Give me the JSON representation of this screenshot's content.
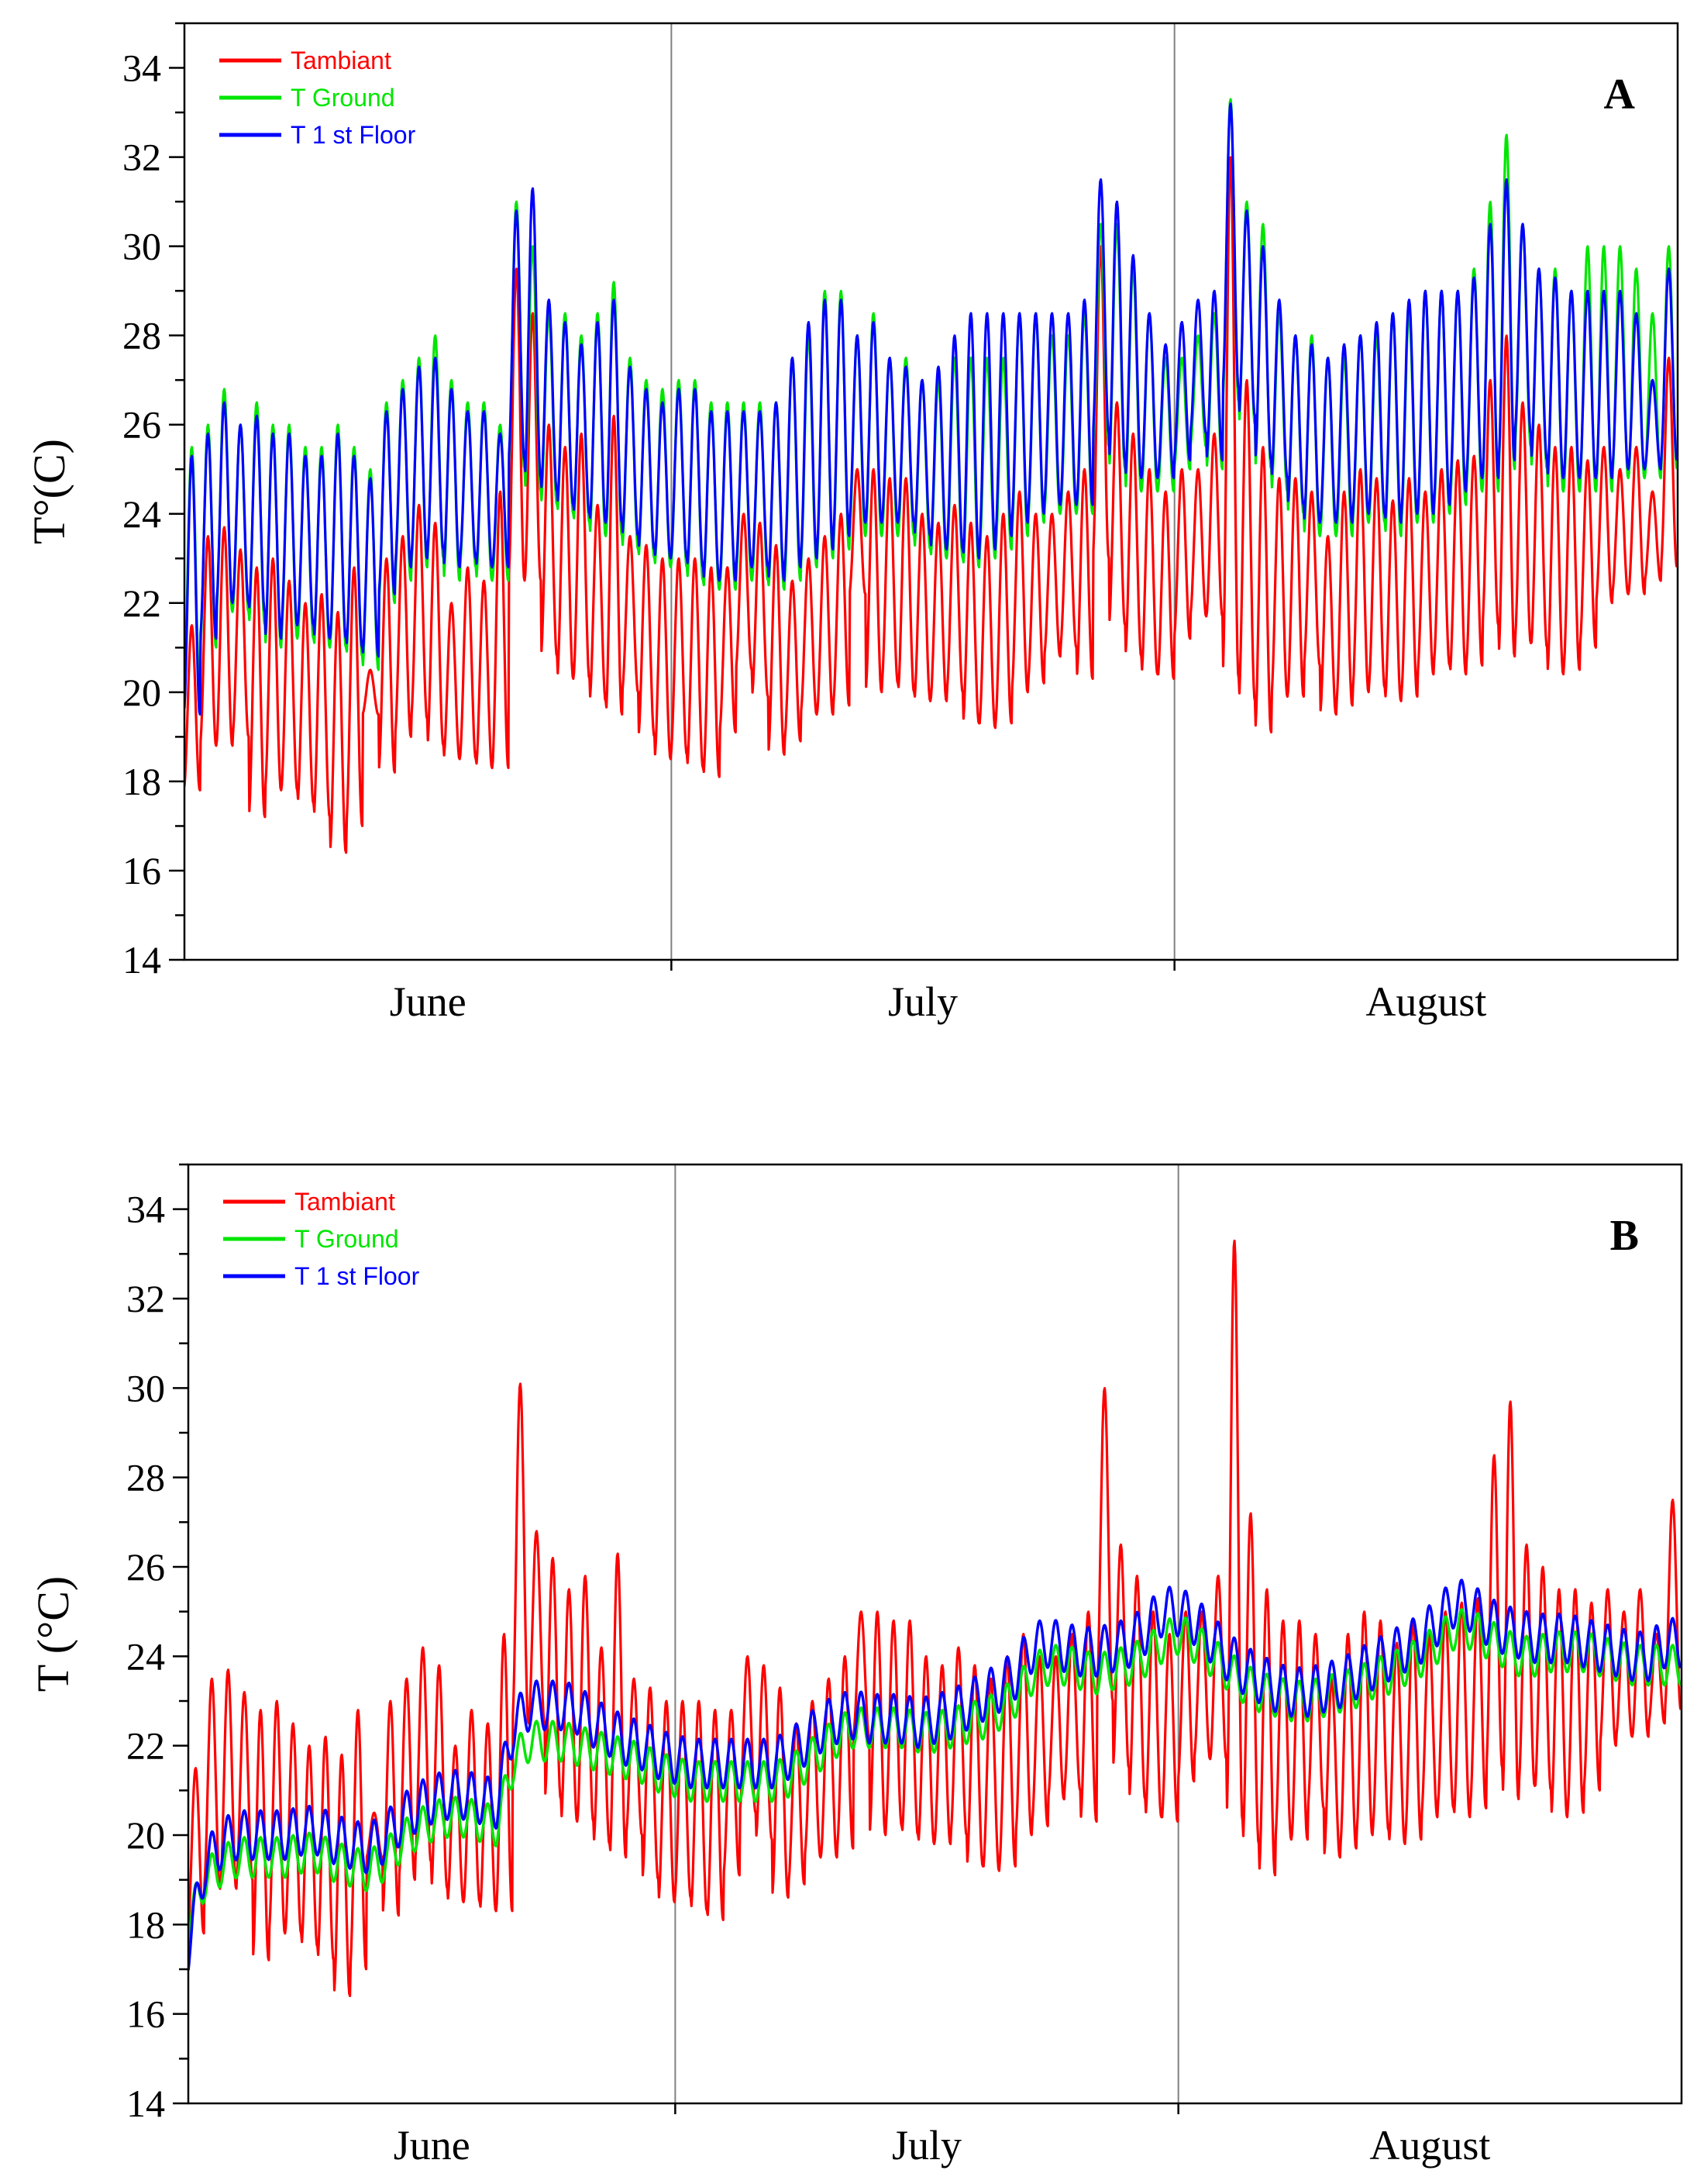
{
  "chart_data": [
    {
      "type": "line",
      "panel": "A",
      "ylabel": "T°(C)",
      "xlabel": "",
      "ylim": [
        14,
        35
      ],
      "yticks": [
        "14",
        "16",
        "18",
        "20",
        "22",
        "24",
        "26",
        "28",
        "30",
        "32",
        "34"
      ],
      "x_unit": "day of summer period (0 = 1 June)",
      "xlim": [
        0,
        92
      ],
      "months": [
        {
          "label": "June",
          "center": 15
        },
        {
          "label": "July",
          "center": 45.5
        },
        {
          "label": "August",
          "center": 76.5
        }
      ],
      "month_dividers": [
        30,
        61
      ],
      "legend": [
        "Tambiant",
        "T Ground",
        "T 1 st Floor"
      ],
      "colors": {
        "Tambiant": "#ff0000",
        "T Ground": "#00e600",
        "T 1 st Floor": "#0000ff"
      },
      "series": [
        {
          "name": "Tambiant",
          "color": "#ff0000",
          "daily_min": [
            17.8,
            18.8,
            18.8,
            19.0,
            17.2,
            17.8,
            17.8,
            17.5,
            17.2,
            16.4,
            17.0,
            19.5,
            18.2,
            19.0,
            19.4,
            18.8,
            18.5,
            18.5,
            18.3,
            18.3,
            22.5,
            22.5,
            20.8,
            20.3,
            20.3,
            19.8,
            19.5,
            20.0,
            19.0,
            18.5,
            18.6,
            18.3,
            18.1,
            19.1,
            20.5,
            19.9,
            18.6,
            18.9,
            19.5,
            19.5,
            19.7,
            22.2,
            20.0,
            20.2,
            20.0,
            19.8,
            19.8,
            20.0,
            19.3,
            19.2,
            19.3,
            20.0,
            20.2,
            20.8,
            21.0,
            20.3,
            23.0,
            21.5,
            20.8,
            20.4,
            20.3,
            21.2,
            21.7,
            21.7,
            20.3,
            19.8,
            19.1,
            19.9,
            19.9,
            20.6,
            19.5,
            19.7,
            20.0,
            20.1,
            19.8,
            19.9,
            20.4,
            20.6,
            20.4,
            20.6,
            21.5,
            20.8,
            21.1,
            21.0,
            20.4,
            20.5,
            21.0,
            22.0,
            22.2,
            22.2,
            22.5,
            22.8
          ],
          "daily_max": [
            21.5,
            23.5,
            23.7,
            23.2,
            22.8,
            23.0,
            22.5,
            22.0,
            22.2,
            21.8,
            22.8,
            20.5,
            23.0,
            23.5,
            24.2,
            23.8,
            22.0,
            22.8,
            22.5,
            24.5,
            29.5,
            28.5,
            26.0,
            25.5,
            25.8,
            24.2,
            26.2,
            23.5,
            23.3,
            23.0,
            23.0,
            23.0,
            22.8,
            22.8,
            24.0,
            23.8,
            23.3,
            22.5,
            23.0,
            23.5,
            24.0,
            25.0,
            25.0,
            24.8,
            24.8,
            24.0,
            23.8,
            24.2,
            23.8,
            23.5,
            24.0,
            24.5,
            24.0,
            24.0,
            24.5,
            25.0,
            30.0,
            26.5,
            25.8,
            25.0,
            24.5,
            25.0,
            25.0,
            25.8,
            32.0,
            27.0,
            25.5,
            24.8,
            24.8,
            24.5,
            23.5,
            24.5,
            25.0,
            24.8,
            24.3,
            24.8,
            24.5,
            25.0,
            25.2,
            25.3,
            27.0,
            28.0,
            26.5,
            26.0,
            25.5,
            25.5,
            25.2,
            25.5,
            25.0,
            25.5,
            24.5,
            27.5
          ]
        },
        {
          "name": "T Ground",
          "color": "#00e600",
          "daily_min": [
            20.0,
            21.0,
            21.8,
            21.8,
            21.5,
            21.0,
            21.2,
            21.2,
            21.0,
            21.0,
            20.8,
            20.5,
            22.0,
            22.5,
            22.8,
            23.0,
            22.5,
            22.8,
            22.5,
            22.5,
            25.0,
            24.5,
            24.2,
            24.0,
            23.8,
            23.5,
            23.5,
            23.2,
            23.0,
            22.8,
            22.8,
            22.5,
            22.3,
            22.3,
            22.5,
            22.5,
            22.3,
            22.5,
            22.8,
            23.0,
            23.2,
            23.5,
            23.5,
            23.5,
            23.5,
            23.2,
            23.0,
            23.0,
            22.8,
            23.0,
            23.2,
            23.5,
            23.8,
            24.0,
            24.0,
            24.0,
            25.5,
            25.0,
            24.5,
            24.5,
            24.5,
            25.0,
            25.5,
            25.0,
            26.5,
            26.0,
            25.0,
            24.5,
            24.0,
            23.5,
            23.5,
            23.5,
            23.8,
            23.8,
            23.5,
            23.8,
            23.8,
            24.0,
            24.2,
            24.5,
            24.5,
            25.0,
            25.5,
            25.0,
            24.5,
            24.5,
            24.5,
            24.5,
            24.8,
            24.8,
            24.8,
            25.0
          ],
          "daily_max": [
            25.5,
            26.0,
            26.8,
            26.0,
            26.5,
            26.0,
            26.0,
            25.5,
            25.5,
            26.0,
            25.5,
            25.0,
            26.5,
            27.0,
            27.5,
            28.0,
            27.0,
            26.5,
            26.5,
            26.0,
            31.0,
            30.0,
            28.5,
            28.5,
            28.0,
            28.5,
            29.2,
            27.5,
            27.0,
            26.8,
            27.0,
            27.0,
            26.5,
            26.5,
            26.5,
            26.5,
            26.5,
            27.5,
            28.0,
            29.0,
            29.0,
            28.0,
            28.5,
            27.5,
            27.5,
            27.0,
            27.0,
            27.5,
            27.5,
            27.5,
            27.5,
            28.5,
            28.5,
            28.0,
            28.0,
            28.5,
            30.5,
            30.5,
            29.5,
            28.5,
            27.5,
            27.5,
            28.0,
            28.5,
            33.3,
            31.0,
            30.5,
            28.5,
            28.0,
            28.0,
            27.5,
            27.5,
            28.0,
            28.0,
            28.5,
            28.5,
            29.0,
            29.0,
            29.0,
            29.5,
            31.0,
            32.5,
            30.5,
            29.5,
            29.5,
            29.0,
            30.0,
            30.0,
            30.0,
            29.5,
            28.5,
            30.0
          ]
        },
        {
          "name": "T 1 st Floor",
          "color": "#0000ff",
          "daily_min": [
            19.5,
            21.2,
            22.0,
            22.0,
            21.8,
            21.2,
            21.5,
            21.5,
            21.2,
            21.2,
            21.0,
            20.8,
            22.2,
            22.8,
            23.0,
            23.2,
            22.8,
            23.0,
            22.8,
            22.8,
            25.2,
            24.8,
            24.5,
            24.2,
            24.0,
            23.8,
            23.8,
            23.5,
            23.2,
            23.0,
            23.0,
            22.8,
            22.5,
            22.5,
            22.8,
            22.8,
            22.5,
            22.8,
            23.0,
            23.2,
            23.5,
            23.8,
            23.8,
            23.8,
            23.8,
            23.5,
            23.2,
            23.2,
            23.0,
            23.2,
            23.5,
            23.8,
            24.0,
            24.2,
            24.2,
            24.2,
            25.8,
            25.2,
            24.8,
            24.8,
            24.8,
            25.2,
            25.8,
            25.2,
            26.8,
            26.2,
            25.2,
            24.8,
            24.2,
            23.8,
            23.8,
            23.8,
            24.0,
            24.0,
            23.8,
            24.0,
            24.0,
            24.2,
            24.5,
            24.8,
            24.8,
            25.2,
            25.8,
            25.2,
            24.8,
            24.8,
            24.8,
            24.8,
            25.0,
            25.0,
            25.0,
            25.2
          ],
          "daily_max": [
            25.3,
            25.8,
            26.5,
            26.0,
            26.2,
            25.8,
            25.8,
            25.3,
            25.3,
            25.8,
            25.3,
            24.8,
            26.3,
            26.8,
            27.3,
            27.5,
            26.8,
            26.3,
            26.3,
            25.8,
            30.8,
            31.3,
            28.8,
            28.3,
            27.8,
            28.3,
            28.8,
            27.3,
            26.8,
            26.5,
            26.8,
            26.8,
            26.3,
            26.3,
            26.3,
            26.3,
            26.5,
            27.5,
            28.3,
            28.8,
            28.8,
            28.0,
            28.3,
            27.5,
            27.3,
            27.0,
            27.3,
            28.0,
            28.5,
            28.5,
            28.5,
            28.5,
            28.5,
            28.5,
            28.5,
            28.8,
            31.5,
            31.0,
            29.8,
            28.5,
            27.8,
            28.3,
            28.8,
            29.0,
            33.2,
            30.8,
            30.0,
            28.8,
            28.0,
            27.8,
            27.5,
            27.8,
            28.0,
            28.3,
            28.5,
            28.8,
            29.0,
            29.0,
            29.0,
            29.3,
            30.5,
            31.5,
            30.5,
            29.5,
            29.3,
            29.0,
            29.0,
            29.0,
            29.0,
            28.5,
            27.0,
            29.5
          ]
        }
      ]
    },
    {
      "type": "line",
      "panel": "B",
      "ylabel": "T (°C)",
      "xlabel": "",
      "ylim": [
        14,
        35
      ],
      "yticks": [
        "14",
        "16",
        "18",
        "20",
        "22",
        "24",
        "26",
        "28",
        "30",
        "32",
        "34"
      ],
      "x_unit": "day of summer period (0 = 1 June)",
      "xlim": [
        0,
        92
      ],
      "months": [
        {
          "label": "June",
          "center": 15
        },
        {
          "label": "July",
          "center": 45.5
        },
        {
          "label": "August",
          "center": 76.5
        }
      ],
      "month_dividers": [
        30,
        61
      ],
      "legend": [
        "Tambiant",
        "T Ground",
        "T 1 st Floor"
      ],
      "colors": {
        "Tambiant": "#ff0000",
        "T Ground": "#00e600",
        "T 1 st Floor": "#0000ff"
      },
      "series": [
        {
          "name": "Tambiant",
          "color": "#ff0000",
          "daily_min": [
            17.8,
            18.8,
            18.8,
            19.0,
            17.2,
            17.8,
            17.8,
            17.5,
            17.2,
            16.4,
            17.0,
            19.5,
            18.2,
            19.0,
            19.4,
            18.8,
            18.5,
            18.5,
            18.3,
            18.3,
            22.5,
            22.5,
            20.8,
            20.3,
            20.3,
            19.8,
            19.5,
            20.0,
            19.0,
            18.5,
            18.6,
            18.3,
            18.1,
            19.1,
            20.5,
            19.9,
            18.6,
            18.9,
            19.5,
            19.5,
            19.7,
            22.2,
            20.0,
            20.2,
            20.0,
            19.8,
            19.8,
            20.0,
            19.3,
            19.2,
            19.3,
            20.0,
            20.2,
            20.8,
            21.0,
            20.3,
            23.0,
            21.5,
            20.8,
            20.4,
            20.3,
            21.2,
            21.7,
            21.7,
            20.3,
            19.8,
            19.1,
            19.9,
            19.9,
            20.6,
            19.5,
            19.7,
            20.0,
            20.1,
            19.8,
            19.9,
            20.4,
            20.6,
            20.4,
            20.6,
            21.5,
            20.8,
            21.1,
            21.0,
            20.4,
            20.5,
            21.0,
            22.0,
            22.2,
            22.2,
            22.5,
            22.8
          ],
          "daily_max": [
            21.5,
            23.5,
            23.7,
            23.2,
            22.8,
            23.0,
            22.5,
            22.0,
            22.2,
            21.8,
            22.8,
            20.5,
            23.0,
            23.5,
            24.2,
            23.8,
            22.0,
            22.8,
            22.5,
            24.5,
            30.1,
            26.8,
            26.2,
            25.5,
            25.8,
            24.2,
            26.3,
            23.5,
            23.3,
            23.0,
            23.0,
            23.0,
            22.8,
            22.8,
            24.0,
            23.8,
            23.3,
            22.5,
            23.0,
            23.5,
            24.0,
            25.0,
            25.0,
            24.8,
            24.8,
            24.0,
            23.8,
            24.2,
            23.8,
            23.5,
            24.0,
            24.5,
            24.0,
            24.0,
            24.5,
            25.0,
            30.0,
            26.5,
            25.8,
            25.0,
            24.5,
            25.0,
            25.0,
            25.8,
            33.3,
            27.2,
            25.5,
            24.8,
            24.8,
            24.5,
            23.5,
            24.5,
            25.0,
            24.8,
            24.3,
            24.8,
            24.5,
            25.0,
            25.2,
            25.3,
            28.5,
            29.7,
            26.5,
            26.0,
            25.5,
            25.5,
            25.2,
            25.5,
            25.0,
            25.5,
            24.5,
            27.5
          ]
        },
        {
          "name": "T Ground",
          "color": "#00e600",
          "daily_mean": [
            18.0,
            19.0,
            19.3,
            19.5,
            19.5,
            19.5,
            19.5,
            19.6,
            19.6,
            19.4,
            19.3,
            19.2,
            19.4,
            19.8,
            20.1,
            20.3,
            20.4,
            20.4,
            20.3,
            20.2,
            21.6,
            22.1,
            22.1,
            22.1,
            22.0,
            21.9,
            21.8,
            21.7,
            21.6,
            21.4,
            21.3,
            21.2,
            21.2,
            21.2,
            21.2,
            21.2,
            21.2,
            21.3,
            21.6,
            21.9,
            22.2,
            22.4,
            22.4,
            22.4,
            22.4,
            22.3,
            22.3,
            22.4,
            22.5,
            22.6,
            22.8,
            23.1,
            23.6,
            23.8,
            23.8,
            23.7,
            23.6,
            23.7,
            23.8,
            24.0,
            24.3,
            24.5,
            24.3,
            24.0,
            23.7,
            23.4,
            23.2,
            23.1,
            23.0,
            23.0,
            23.1,
            23.2,
            23.3,
            23.5,
            23.6,
            23.8,
            24.0,
            24.3,
            24.6,
            24.6,
            24.4,
            24.2,
            24.0,
            24.0,
            24.1,
            24.1,
            24.1,
            24.0,
            23.9,
            23.8,
            23.8,
            23.8
          ],
          "daily_amplitude": 0.9
        },
        {
          "name": "T 1 st Floor",
          "color": "#0000ff",
          "daily_mean": [
            17.5,
            19.3,
            19.8,
            20.0,
            20.0,
            20.0,
            20.0,
            20.1,
            20.1,
            19.9,
            19.8,
            19.7,
            19.9,
            20.3,
            20.6,
            20.8,
            20.9,
            20.9,
            20.8,
            20.7,
            22.4,
            22.9,
            22.9,
            22.9,
            22.8,
            22.5,
            22.3,
            22.1,
            22.0,
            21.8,
            21.7,
            21.6,
            21.6,
            21.6,
            21.6,
            21.6,
            21.6,
            21.8,
            22.1,
            22.4,
            22.6,
            22.7,
            22.6,
            22.6,
            22.6,
            22.5,
            22.6,
            22.7,
            22.9,
            23.1,
            23.3,
            23.6,
            24.2,
            24.3,
            24.2,
            24.1,
            24.1,
            24.2,
            24.3,
            24.6,
            25.0,
            25.0,
            24.8,
            24.4,
            24.0,
            23.7,
            23.5,
            23.3,
            23.2,
            23.2,
            23.3,
            23.4,
            23.6,
            23.8,
            24.0,
            24.2,
            24.4,
            24.8,
            25.2,
            25.1,
            24.8,
            24.6,
            24.5,
            24.4,
            24.4,
            24.4,
            24.3,
            24.2,
            24.1,
            24.0,
            24.0,
            24.3
          ],
          "daily_amplitude": 1.1
        }
      ]
    }
  ]
}
